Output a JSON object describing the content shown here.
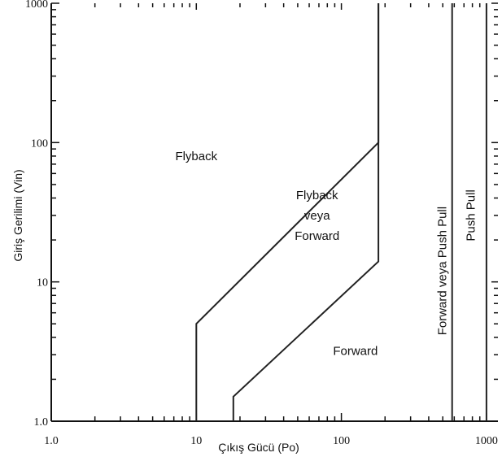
{
  "chart_data": {
    "type": "line",
    "title": "",
    "xlabel": "Çıkış Gücü (Po)",
    "ylabel": "Giriş Gerilimi (Vin)",
    "xscale": "log",
    "yscale": "log",
    "xlim": [
      1.0,
      1200
    ],
    "ylim": [
      1.0,
      1000
    ],
    "grid": false,
    "x_tick_labels": [
      {
        "value": 1,
        "label": "1.0"
      },
      {
        "value": 10,
        "label": "10"
      },
      {
        "value": 100,
        "label": "100"
      },
      {
        "value": 1000,
        "label": "1000"
      }
    ],
    "y_tick_labels": [
      {
        "value": 1,
        "label": "1.0"
      },
      {
        "value": 10,
        "label": "10"
      },
      {
        "value": 100,
        "label": "100"
      },
      {
        "value": 1000,
        "label": "1000"
      }
    ],
    "boundaries": [
      {
        "points": [
          [
            10,
            1.0
          ],
          [
            10,
            5
          ],
          [
            180,
            100
          ],
          [
            180,
            1000
          ]
        ]
      },
      {
        "points": [
          [
            18,
            1.0
          ],
          [
            18,
            1.5
          ],
          [
            180,
            14
          ],
          [
            180,
            1000
          ]
        ]
      },
      {
        "points": [
          [
            580,
            1.0
          ],
          [
            580,
            1000
          ]
        ]
      },
      {
        "points": [
          [
            1000,
            1.0
          ],
          [
            1000,
            1000
          ]
        ]
      }
    ],
    "regions": [
      {
        "lines": [
          "Flyback"
        ],
        "x": 10,
        "y": 80,
        "rotate": false
      },
      {
        "lines": [
          "Flyback",
          "veya",
          "Forward"
        ],
        "x": 68,
        "y": 30,
        "rotate": false
      },
      {
        "lines": [
          "Forward"
        ],
        "x": 125,
        "y": 3.2,
        "rotate": false
      },
      {
        "lines": [
          "Forward veya Push Pull"
        ],
        "x": 530,
        "y": 12,
        "rotate": true
      },
      {
        "lines": [
          "Push Pull"
        ],
        "x": 830,
        "y": 30,
        "rotate": true
      }
    ]
  }
}
